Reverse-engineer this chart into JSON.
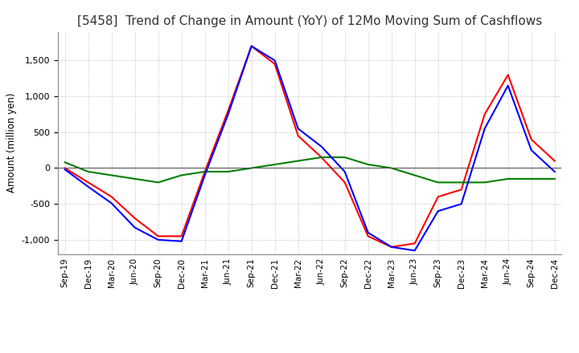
{
  "title": "[5458]  Trend of Change in Amount (YoY) of 12Mo Moving Sum of Cashflows",
  "ylabel": "Amount (million yen)",
  "x_labels": [
    "Sep-19",
    "Dec-19",
    "Mar-20",
    "Jun-20",
    "Sep-20",
    "Dec-20",
    "Mar-21",
    "Jun-21",
    "Sep-21",
    "Dec-21",
    "Mar-22",
    "Jun-22",
    "Sep-22",
    "Dec-22",
    "Mar-23",
    "Jun-23",
    "Sep-23",
    "Dec-23",
    "Mar-24",
    "Jun-24",
    "Sep-24",
    "Dec-24"
  ],
  "operating": [
    0,
    -200,
    -400,
    -700,
    -950,
    -950,
    -50,
    800,
    1700,
    1450,
    450,
    150,
    -200,
    -950,
    -1100,
    -1050,
    -400,
    -300,
    750,
    1300,
    400,
    100
  ],
  "investing": [
    80,
    -50,
    -100,
    -150,
    -200,
    -100,
    -50,
    -50,
    0,
    50,
    100,
    150,
    150,
    50,
    0,
    -100,
    -200,
    -200,
    -200,
    -150,
    -150,
    -150
  ],
  "free": [
    -20,
    -260,
    -490,
    -830,
    -1000,
    -1020,
    -100,
    750,
    1700,
    1500,
    550,
    300,
    -50,
    -900,
    -1100,
    -1150,
    -600,
    -500,
    550,
    1150,
    250,
    -50
  ],
  "ylim": [
    -1200,
    1900
  ],
  "yticks": [
    -1000,
    -500,
    0,
    500,
    1000,
    1500
  ],
  "operating_color": "#ff0000",
  "investing_color": "#008000",
  "free_color": "#0000ff",
  "background_color": "#ffffff",
  "grid_color": "#b0b0b0",
  "title_fontsize": 11,
  "linewidth": 1.5
}
